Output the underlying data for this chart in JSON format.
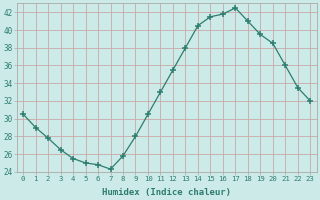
{
  "x": [
    0,
    1,
    2,
    3,
    4,
    5,
    6,
    7,
    8,
    9,
    10,
    11,
    12,
    13,
    14,
    15,
    16,
    17,
    18,
    19,
    20,
    21,
    22,
    23
  ],
  "y": [
    30.5,
    29.0,
    27.8,
    26.5,
    25.5,
    25.0,
    24.8,
    24.3,
    25.8,
    28.0,
    30.5,
    33.0,
    35.5,
    38.0,
    40.5,
    41.5,
    41.8,
    42.5,
    41.0,
    39.5,
    38.5,
    36.0,
    33.5,
    32.0
  ],
  "bg_color": "#cceae7",
  "plot_bg_color": "#cceae7",
  "grid_color": "#c8a8a8",
  "line_color": "#2d7d6f",
  "marker_color": "#2d7d6f",
  "tick_color": "#2d7d6f",
  "xlabel": "Humidex (Indice chaleur)",
  "ylim": [
    24,
    43
  ],
  "xlim": [
    -0.5,
    23.5
  ],
  "yticks": [
    24,
    26,
    28,
    30,
    32,
    34,
    36,
    38,
    40,
    42
  ],
  "xticks": [
    0,
    1,
    2,
    3,
    4,
    5,
    6,
    7,
    8,
    9,
    10,
    11,
    12,
    13,
    14,
    15,
    16,
    17,
    18,
    19,
    20,
    21,
    22,
    23
  ]
}
